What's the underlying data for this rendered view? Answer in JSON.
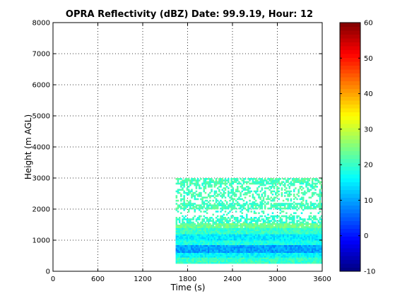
{
  "chart_data": {
    "type": "heatmap",
    "title": "OPRA Reflectivity (dBZ)  Date: 99.9.19, Hour: 12",
    "xlabel": "Time (s)",
    "ylabel": "Height (m AGL)",
    "xlim": [
      0,
      3600
    ],
    "ylim": [
      0,
      8000
    ],
    "xticks": [
      "0",
      "600",
      "1200",
      "1800",
      "2400",
      "3000",
      "3600"
    ],
    "yticks": [
      "0",
      "1000",
      "2000",
      "3000",
      "4000",
      "5000",
      "6000",
      "7000",
      "8000"
    ],
    "grid": true,
    "colorbar": {
      "range": [
        -10,
        60
      ],
      "ticks": [
        "-10",
        "0",
        "10",
        "20",
        "30",
        "40",
        "50",
        "60"
      ],
      "colormap": "jet"
    },
    "data_extent": {
      "x": [
        1640,
        3600
      ],
      "y": [
        250,
        3000
      ]
    },
    "layers": [
      {
        "y0": 250,
        "y1": 450,
        "dbz": 20,
        "coverage": 1.0
      },
      {
        "y0": 450,
        "y1": 600,
        "dbz": 16,
        "coverage": 1.0
      },
      {
        "y0": 600,
        "y1": 850,
        "dbz": 10,
        "coverage": 1.0
      },
      {
        "y0": 850,
        "y1": 1000,
        "dbz": 18,
        "coverage": 1.0
      },
      {
        "y0": 1000,
        "y1": 1200,
        "dbz": 15,
        "coverage": 1.0
      },
      {
        "y0": 1200,
        "y1": 1400,
        "dbz": 20,
        "coverage": 1.0
      },
      {
        "y0": 1400,
        "y1": 1550,
        "dbz": 24,
        "coverage": 0.95
      },
      {
        "y0": 1550,
        "y1": 1700,
        "dbz": 20,
        "coverage": 0.65
      },
      {
        "y0": 1700,
        "y1": 1800,
        "dbz": 20,
        "coverage": 0.4
      },
      {
        "y0": 1800,
        "y1": 2000,
        "dbz": 20,
        "coverage": 0.15
      },
      {
        "y0": 2000,
        "y1": 2200,
        "dbz": 21,
        "coverage": 0.7
      },
      {
        "y0": 2200,
        "y1": 2400,
        "dbz": 21,
        "coverage": 0.3
      },
      {
        "y0": 2400,
        "y1": 2600,
        "dbz": 21,
        "coverage": 0.5
      },
      {
        "y0": 2600,
        "y1": 2800,
        "dbz": 21,
        "coverage": 0.4
      },
      {
        "y0": 2800,
        "y1": 3000,
        "dbz": 21,
        "coverage": 0.7
      }
    ]
  }
}
